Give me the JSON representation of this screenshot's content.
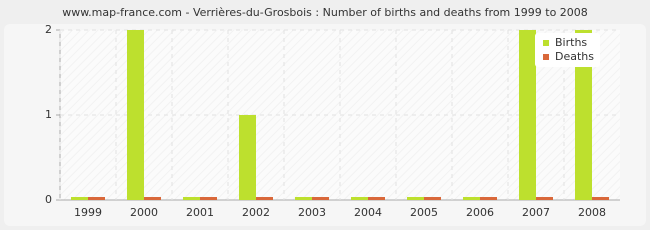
{
  "chart_data": {
    "type": "bar",
    "title": "www.map-france.com - Verrières-du-Grosbois : Number of births and deaths from 1999 to 2008",
    "categories": [
      "1999",
      "2000",
      "2001",
      "2002",
      "2003",
      "2004",
      "2005",
      "2006",
      "2007",
      "2008"
    ],
    "series": [
      {
        "name": "Births",
        "color": "#bde02e",
        "values": [
          0,
          2,
          0,
          1,
          0,
          0,
          0,
          0,
          2,
          2
        ]
      },
      {
        "name": "Deaths",
        "color": "#d9683a",
        "values": [
          0,
          0,
          0,
          0,
          0,
          0,
          0,
          0,
          0,
          0
        ]
      }
    ],
    "ylim": [
      0,
      2
    ],
    "yticks": [
      0,
      1,
      2
    ],
    "grid": true,
    "legend": "top-right"
  }
}
